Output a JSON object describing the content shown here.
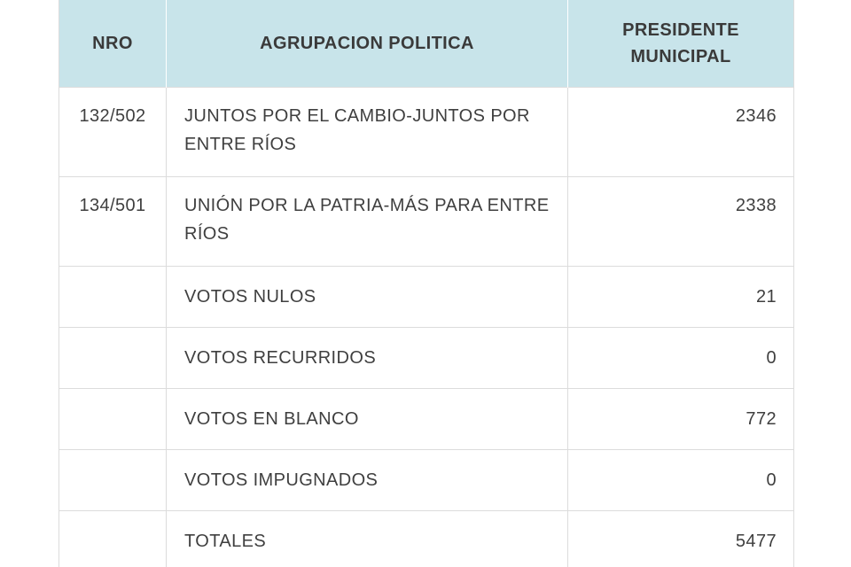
{
  "table": {
    "headers": {
      "nro": "NRO",
      "agrupacion": "AGRUPACION POLITICA",
      "presidente_line1": "PRESIDENTE",
      "presidente_line2": "MUNICIPAL"
    },
    "rows": [
      {
        "nro": "132/502",
        "agrupacion": "JUNTOS POR EL CAMBIO-JUNTOS POR ENTRE RÍOS",
        "presidente": "2346"
      },
      {
        "nro": "134/501",
        "agrupacion": "UNIÓN POR LA PATRIA-MÁS PARA ENTRE RÍOS",
        "presidente": "2338"
      },
      {
        "nro": "",
        "agrupacion": "VOTOS NULOS",
        "presidente": "21"
      },
      {
        "nro": "",
        "agrupacion": "VOTOS RECURRIDOS",
        "presidente": "0"
      },
      {
        "nro": "",
        "agrupacion": "VOTOS EN BLANCO",
        "presidente": "772"
      },
      {
        "nro": "",
        "agrupacion": "VOTOS IMPUGNADOS",
        "presidente": "0"
      },
      {
        "nro": "",
        "agrupacion": "TOTALES",
        "presidente": "5477"
      }
    ]
  },
  "colors": {
    "header_bg": "#c8e4ea",
    "border": "#dcdcdc",
    "text": "#3f3f3f"
  }
}
